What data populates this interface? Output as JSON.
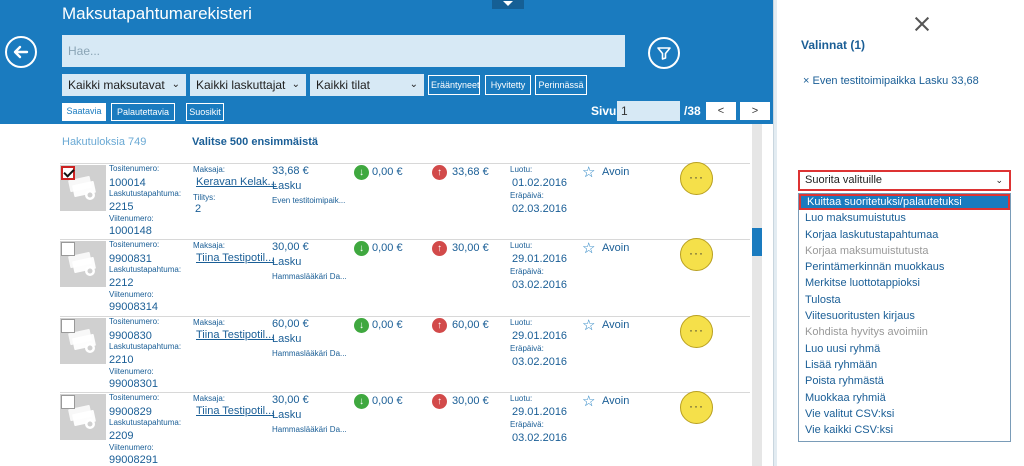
{
  "app": {
    "title": "Maksutapahtumarekisteri"
  },
  "search": {
    "placeholder": "Hae..."
  },
  "filters": [
    {
      "label": "Kaikki maksutavat"
    },
    {
      "label": "Kaikki laskuttajat"
    },
    {
      "label": "Kaikki tilat"
    }
  ],
  "toggles": [
    "Erääntyneet",
    "Hyvitetty",
    "Perinnässä"
  ],
  "tabs": [
    "Saatavia",
    "Palautettavia",
    "Suosikit"
  ],
  "pager": {
    "label": "Sivu",
    "current": "1",
    "total": "/38",
    "prev": "<",
    "next": ">"
  },
  "results": {
    "hits": "Hakutuloksia 749",
    "select500": "Valitse 500 ensimmäistä"
  },
  "labels": {
    "tosite": "Tositenumero:",
    "laskutus": "Laskutustapahtuma:",
    "viite": "Viitenumero:",
    "maksaja": "Maksaja:",
    "tilitys": "Tilitys:",
    "luotu": "Luotu:",
    "erapaiva": "Eräpäivä:"
  },
  "rows": [
    {
      "checked": true,
      "tosite": "100014",
      "laskutus": "2215",
      "viite": "1000148",
      "maksaja": "Keravan Kelak...",
      "amount": "33,68 €",
      "type": "Lasku",
      "tilitys_value": "2",
      "desc": "Even testitoimipaik...",
      "green": "0,00 €",
      "red": "33,68 €",
      "luotu": "01.02.2016",
      "erapaiva": "02.03.2016",
      "status": "Avoin"
    },
    {
      "checked": false,
      "tosite": "9900831",
      "laskutus": "2212",
      "viite": "99008314",
      "maksaja": "Tiina Testipotil...",
      "amount": "30,00 €",
      "type": "Lasku",
      "tilitys_value": "",
      "desc": "Hammaslääkäri Da...",
      "green": "0,00 €",
      "red": "30,00 €",
      "luotu": "29.01.2016",
      "erapaiva": "03.02.2016",
      "status": "Avoin"
    },
    {
      "checked": false,
      "tosite": "9900830",
      "laskutus": "2210",
      "viite": "99008301",
      "maksaja": "Tiina Testipotil...",
      "amount": "60,00 €",
      "type": "Lasku",
      "tilitys_value": "",
      "desc": "Hammaslääkäri Da...",
      "green": "0,00 €",
      "red": "60,00 €",
      "luotu": "29.01.2016",
      "erapaiva": "03.02.2016",
      "status": "Avoin"
    },
    {
      "checked": false,
      "tosite": "9900829",
      "laskutus": "2209",
      "viite": "99008291",
      "maksaja": "Tiina Testipotil...",
      "amount": "30,00 €",
      "type": "Lasku",
      "tilitys_value": "",
      "desc": "Hammaslääkäri Da...",
      "green": "0,00 €",
      "red": "30,00 €",
      "luotu": "29.01.2016",
      "erapaiva": "03.02.2016",
      "status": "Avoin"
    }
  ],
  "selection": {
    "title": "Valinnat (1)",
    "item": "× Even testitoimipaikka Lasku 33,68",
    "action_placeholder": "Suorita valituille",
    "menu": [
      {
        "label": "Kuittaa suoritetuksi/palautetuksi",
        "disabled": false,
        "highlight": true
      },
      {
        "label": "Luo maksumuistutus",
        "disabled": false
      },
      {
        "label": "Korjaa laskutustapahtumaa",
        "disabled": false
      },
      {
        "label": "Korjaa maksumuistutusta",
        "disabled": true
      },
      {
        "label": "Perintämerkinnän muokkaus",
        "disabled": false
      },
      {
        "label": "Merkitse luottotappioksi",
        "disabled": false
      },
      {
        "label": "Tulosta",
        "disabled": false
      },
      {
        "label": "Viitesuoritusten kirjaus",
        "disabled": false
      },
      {
        "label": "Kohdista hyvitys avoimiin",
        "disabled": true
      },
      {
        "label": "Luo uusi ryhmä",
        "disabled": false
      },
      {
        "label": "Lisää ryhmään",
        "disabled": false
      },
      {
        "label": "Poista ryhmästä",
        "disabled": false
      },
      {
        "label": "Muokkaa ryhmiä",
        "disabled": false
      },
      {
        "label": "Vie valitut CSV:ksi",
        "disabled": false
      },
      {
        "label": "Vie kaikki CSV:ksi",
        "disabled": false
      }
    ]
  },
  "icons": {
    "back": "back-arrow-icon",
    "filter": "filter-funnel-icon",
    "close": "close-icon",
    "star": "star-outline-icon",
    "more": "more-dots-icon",
    "thumb": "money-bills-icon"
  },
  "colors": {
    "header": "#1a7bbf",
    "accent_red": "#d33333",
    "button_yellow": "#f5e04a"
  }
}
